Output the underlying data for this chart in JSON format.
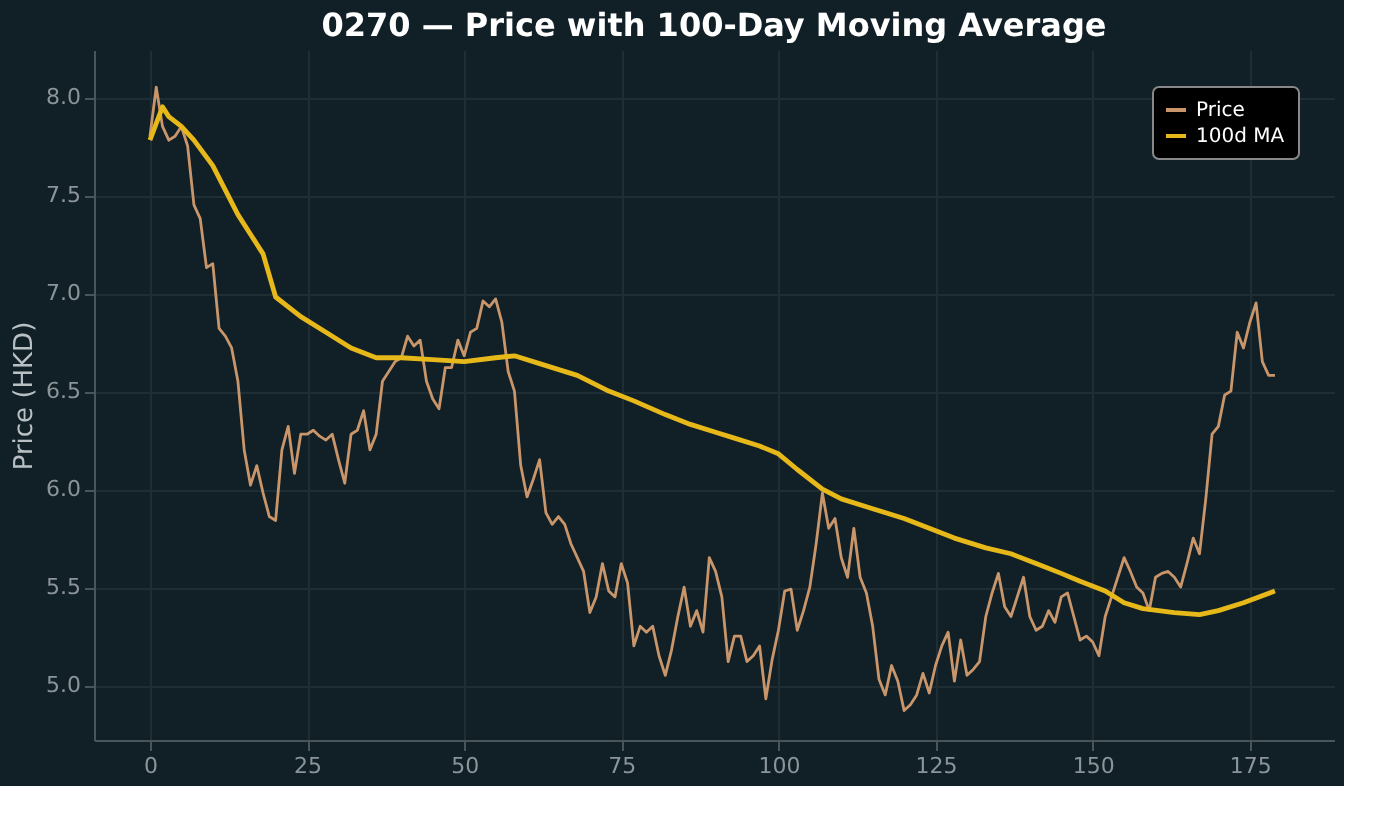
{
  "chart_data": {
    "type": "line",
    "title": "0270 — Price with 100-Day Moving Average",
    "ylabel": "Price (HKD)",
    "xlim": [
      -8.9,
      188.4
    ],
    "ylim": [
      4.72,
      8.24
    ],
    "xticks": [
      0,
      25,
      50,
      75,
      100,
      125,
      150,
      175
    ],
    "yticks": [
      {
        "value": 5,
        "label": "5.0"
      },
      5.5,
      {
        "value": 6,
        "label": "6.0"
      },
      6.5,
      {
        "value": 7,
        "label": "7.0"
      },
      7.5,
      {
        "value": 8,
        "label": "8.0"
      }
    ],
    "grid": true,
    "legend": "top right",
    "line_style": "solid",
    "marker": "none",
    "series": [
      {
        "name": "Price",
        "color": "#c8966a",
        "x": [
          0,
          1,
          2,
          3,
          4,
          5,
          6,
          7,
          8,
          9,
          10,
          11,
          12,
          13,
          14,
          15,
          16,
          17,
          18,
          19,
          20,
          21,
          22,
          23,
          24,
          25,
          26,
          27,
          28,
          29,
          30,
          31,
          32,
          33,
          34,
          35,
          36,
          37,
          38,
          39,
          40,
          41,
          42,
          43,
          44,
          45,
          46,
          47,
          48,
          49,
          50,
          51,
          52,
          53,
          54,
          55,
          56,
          57,
          58,
          59,
          60,
          61,
          62,
          63,
          64,
          65,
          66,
          67,
          68,
          69,
          70,
          71,
          72,
          73,
          74,
          75,
          76,
          77,
          78,
          79,
          80,
          81,
          82,
          83,
          84,
          85,
          86,
          87,
          88,
          89,
          90,
          91,
          92,
          93,
          94,
          95,
          96,
          97,
          98,
          99,
          100,
          101,
          102,
          103,
          104,
          105,
          106,
          107,
          108,
          109,
          110,
          111,
          112,
          113,
          114,
          115,
          116,
          117,
          118,
          119,
          120,
          121,
          122,
          123,
          124,
          125,
          126,
          127,
          128,
          129,
          130,
          131,
          132,
          133,
          134,
          135,
          136,
          137,
          138,
          139,
          140,
          141,
          142,
          143,
          144,
          145,
          146,
          147,
          148,
          149,
          150,
          151,
          152,
          153,
          154,
          155,
          156,
          157,
          158,
          159,
          160,
          161,
          162,
          163,
          164,
          165,
          166,
          167,
          168,
          169,
          170,
          171,
          172,
          173,
          174,
          175,
          176,
          177,
          178,
          179
        ],
        "values": [
          7.8,
          8.05,
          7.85,
          7.78,
          7.8,
          7.85,
          7.75,
          7.45,
          7.38,
          7.13,
          7.15,
          6.82,
          6.78,
          6.72,
          6.55,
          6.2,
          6.02,
          6.12,
          5.98,
          5.86,
          5.84,
          6.2,
          6.32,
          6.08,
          6.28,
          6.28,
          6.3,
          6.27,
          6.25,
          6.28,
          6.15,
          6.03,
          6.28,
          6.3,
          6.4,
          6.2,
          6.28,
          6.55,
          6.6,
          6.65,
          6.67,
          6.78,
          6.73,
          6.76,
          6.55,
          6.46,
          6.41,
          6.62,
          6.62,
          6.76,
          6.68,
          6.8,
          6.82,
          6.96,
          6.93,
          6.97,
          6.85,
          6.6,
          6.5,
          6.12,
          5.96,
          6.05,
          6.15,
          5.88,
          5.82,
          5.86,
          5.82,
          5.72,
          5.65,
          5.58,
          5.37,
          5.45,
          5.62,
          5.48,
          5.45,
          5.62,
          5.52,
          5.2,
          5.3,
          5.27,
          5.3,
          5.15,
          5.05,
          5.18,
          5.35,
          5.5,
          5.3,
          5.38,
          5.27,
          5.65,
          5.58,
          5.45,
          5.12,
          5.25,
          5.25,
          5.12,
          5.15,
          5.2,
          4.93,
          5.13,
          5.28,
          5.48,
          5.49,
          5.28,
          5.38,
          5.5,
          5.72,
          5.98,
          5.8,
          5.85,
          5.65,
          5.55,
          5.8,
          5.55,
          5.47,
          5.3,
          5.03,
          4.95,
          5.1,
          5.02,
          4.87,
          4.9,
          4.95,
          5.06,
          4.96,
          5.1,
          5.2,
          5.27,
          5.02,
          5.23,
          5.05,
          5.08,
          5.12,
          5.35,
          5.47,
          5.57,
          5.4,
          5.35,
          5.45,
          5.55,
          5.35,
          5.28,
          5.3,
          5.38,
          5.32,
          5.45,
          5.47,
          5.35,
          5.23,
          5.25,
          5.22,
          5.15,
          5.35,
          5.45,
          5.55,
          5.65,
          5.58,
          5.5,
          5.47,
          5.38,
          5.55,
          5.57,
          5.58,
          5.55,
          5.5,
          5.62,
          5.75,
          5.67,
          5.95,
          6.28,
          6.32,
          6.48,
          6.5,
          6.8,
          6.72,
          6.85,
          6.95,
          6.65,
          6.58,
          6.58
        ]
      },
      {
        "name": "100d MA",
        "color": "#e6b81a",
        "x": [
          0,
          2,
          3,
          5,
          7,
          10,
          14,
          18,
          20,
          24,
          28,
          32,
          36,
          40,
          45,
          50,
          55,
          58,
          62,
          68,
          73,
          77,
          82,
          86,
          90,
          93,
          97,
          100,
          103,
          107,
          110,
          115,
          120,
          124,
          128,
          133,
          137,
          141,
          145,
          148,
          152,
          155,
          158,
          163,
          167,
          170,
          174,
          179
        ],
        "values": [
          7.78,
          7.95,
          7.9,
          7.85,
          7.78,
          7.65,
          7.4,
          7.2,
          6.98,
          6.88,
          6.8,
          6.72,
          6.67,
          6.67,
          6.66,
          6.65,
          6.67,
          6.68,
          6.64,
          6.58,
          6.5,
          6.45,
          6.38,
          6.33,
          6.29,
          6.26,
          6.22,
          6.18,
          6.1,
          6.0,
          5.95,
          5.9,
          5.85,
          5.8,
          5.75,
          5.7,
          5.67,
          5.62,
          5.57,
          5.53,
          5.48,
          5.42,
          5.39,
          5.37,
          5.36,
          5.38,
          5.42,
          5.48
        ]
      }
    ]
  }
}
